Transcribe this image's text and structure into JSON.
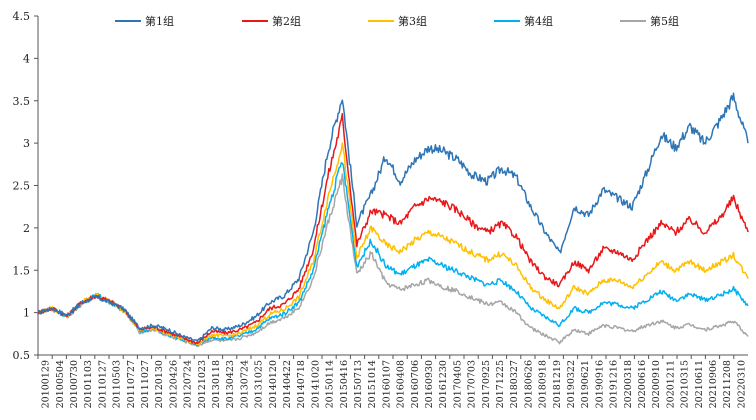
{
  "chart_data": {
    "type": "line",
    "title": "",
    "xlabel": "",
    "ylabel": "",
    "ylim": [
      0.5,
      4.5
    ],
    "yticks": [
      0.5,
      1,
      1.5,
      2,
      2.5,
      3,
      3.5,
      4,
      4.5
    ],
    "ytick_labels": [
      "0.5",
      "1",
      "1.5",
      "2",
      "2.5",
      "3",
      "3.5",
      "4",
      "4.5"
    ],
    "grid": false,
    "legend_position": "top",
    "x_tick_labels": [
      "20100129",
      "20100504",
      "20100730",
      "20101103",
      "20110127",
      "20110503",
      "20110727",
      "20111027",
      "20120130",
      "20120426",
      "20120724",
      "20121023",
      "20130118",
      "20130423",
      "20130724",
      "20131025",
      "20140120",
      "20140422",
      "20140718",
      "20141020",
      "20150114",
      "20150416",
      "20150713",
      "20151014",
      "20160107",
      "20160408",
      "20160706",
      "20160930",
      "20161230",
      "20170405",
      "20170703",
      "20170925",
      "20171225",
      "20180327",
      "20180626",
      "20180918",
      "20181219",
      "20190322",
      "20190621",
      "20190916",
      "20191216",
      "20200318",
      "20200616",
      "20200910",
      "20201211",
      "20210315",
      "20210611",
      "20210906",
      "20211208",
      "20220310"
    ],
    "x": [
      0,
      1,
      2,
      3,
      4,
      5,
      6,
      7,
      8,
      9,
      10,
      11,
      12,
      13,
      14,
      15,
      16,
      17,
      18,
      19,
      20,
      21,
      22,
      23,
      24,
      25,
      26,
      27,
      28,
      29,
      30,
      31,
      32,
      33,
      34,
      35,
      36,
      37,
      38,
      39,
      40,
      41,
      42,
      43,
      44,
      45,
      46,
      47,
      48,
      49
    ],
    "series": [
      {
        "name": "第1组",
        "color": "#2E75B6",
        "values": [
          1.0,
          1.05,
          0.97,
          1.12,
          1.18,
          1.12,
          1.03,
          0.82,
          0.85,
          0.8,
          0.72,
          0.66,
          0.82,
          0.8,
          0.85,
          0.95,
          1.12,
          1.2,
          1.4,
          1.95,
          2.9,
          3.55,
          2.05,
          2.4,
          2.85,
          2.55,
          2.8,
          2.95,
          2.9,
          2.8,
          2.62,
          2.55,
          2.7,
          2.6,
          2.25,
          1.95,
          1.7,
          2.25,
          2.15,
          2.45,
          2.35,
          2.25,
          2.65,
          3.1,
          2.95,
          3.2,
          3.0,
          3.25,
          3.55,
          3.0
        ]
      },
      {
        "name": "第2组",
        "color": "#E8171A",
        "values": [
          1.0,
          1.05,
          0.96,
          1.12,
          1.2,
          1.13,
          1.03,
          0.8,
          0.83,
          0.77,
          0.7,
          0.64,
          0.78,
          0.76,
          0.8,
          0.88,
          1.05,
          1.1,
          1.28,
          1.75,
          2.6,
          3.3,
          1.8,
          2.2,
          2.15,
          2.05,
          2.25,
          2.35,
          2.3,
          2.2,
          2.05,
          1.95,
          2.05,
          1.9,
          1.6,
          1.42,
          1.32,
          1.6,
          1.5,
          1.75,
          1.72,
          1.62,
          1.85,
          2.05,
          1.95,
          2.1,
          1.95,
          2.1,
          2.35,
          1.95
        ]
      },
      {
        "name": "第3组",
        "color": "#FFC000",
        "values": [
          1.0,
          1.05,
          0.96,
          1.12,
          1.21,
          1.13,
          1.02,
          0.79,
          0.82,
          0.75,
          0.69,
          0.63,
          0.74,
          0.72,
          0.76,
          0.84,
          0.98,
          1.04,
          1.18,
          1.6,
          2.35,
          3.0,
          1.65,
          2.0,
          1.8,
          1.72,
          1.85,
          1.95,
          1.88,
          1.8,
          1.7,
          1.62,
          1.7,
          1.55,
          1.3,
          1.15,
          1.05,
          1.3,
          1.22,
          1.38,
          1.38,
          1.3,
          1.45,
          1.6,
          1.5,
          1.6,
          1.5,
          1.58,
          1.68,
          1.4
        ]
      },
      {
        "name": "第4组",
        "color": "#00B0F0",
        "values": [
          1.0,
          1.05,
          0.95,
          1.11,
          1.21,
          1.13,
          1.02,
          0.78,
          0.81,
          0.74,
          0.68,
          0.62,
          0.71,
          0.69,
          0.73,
          0.8,
          0.93,
          0.99,
          1.12,
          1.5,
          2.2,
          2.8,
          1.55,
          1.85,
          1.55,
          1.45,
          1.55,
          1.62,
          1.55,
          1.48,
          1.4,
          1.33,
          1.38,
          1.25,
          1.05,
          0.95,
          0.85,
          1.05,
          1.0,
          1.12,
          1.1,
          1.05,
          1.15,
          1.25,
          1.15,
          1.22,
          1.15,
          1.2,
          1.28,
          1.08
        ]
      },
      {
        "name": "第5组",
        "color": "#A6A6A6",
        "values": [
          1.0,
          1.04,
          0.95,
          1.1,
          1.2,
          1.12,
          1.01,
          0.77,
          0.8,
          0.72,
          0.67,
          0.61,
          0.68,
          0.66,
          0.7,
          0.76,
          0.88,
          0.94,
          1.06,
          1.4,
          2.05,
          2.6,
          1.45,
          1.7,
          1.35,
          1.27,
          1.33,
          1.38,
          1.3,
          1.25,
          1.17,
          1.1,
          1.12,
          1.0,
          0.82,
          0.73,
          0.65,
          0.8,
          0.75,
          0.85,
          0.82,
          0.78,
          0.85,
          0.9,
          0.82,
          0.86,
          0.8,
          0.84,
          0.9,
          0.72
        ]
      }
    ]
  }
}
